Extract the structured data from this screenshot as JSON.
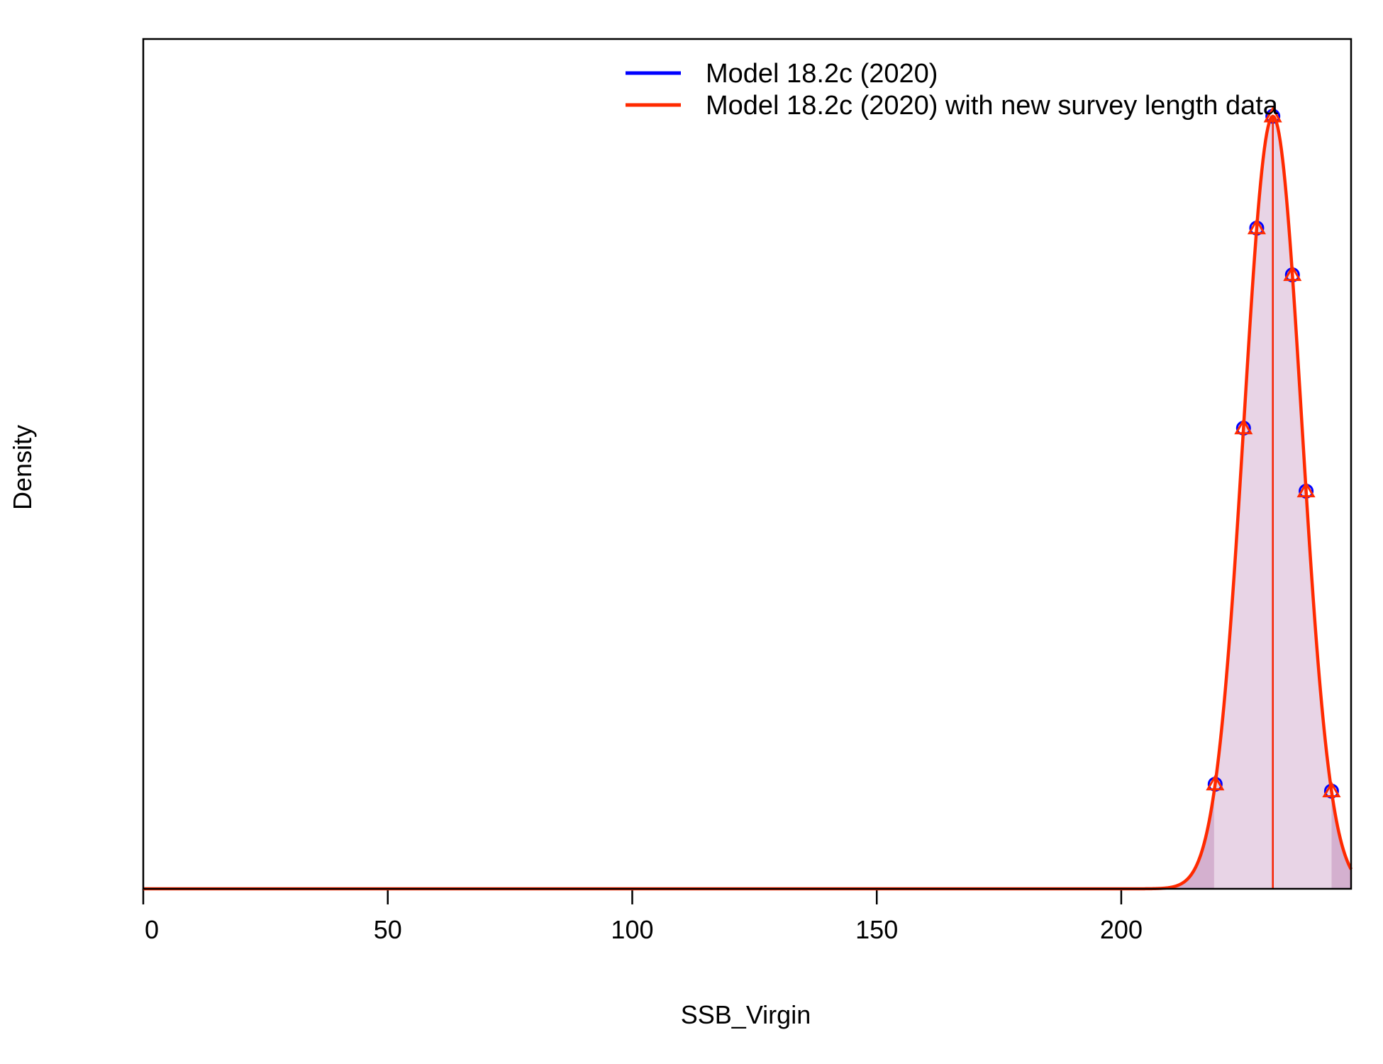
{
  "chart_data": {
    "type": "area",
    "xlabel": "SSB_Virgin",
    "ylabel": "Density",
    "xlim": [
      0,
      247
    ],
    "ylim": [
      0,
      1.1
    ],
    "xticks": [
      0,
      50,
      100,
      150,
      200
    ],
    "xtick_labels": [
      "0",
      "50",
      "100",
      "150",
      "200"
    ],
    "show_y_ticks": false,
    "grid": false,
    "legend_position": "top-right",
    "shading": {
      "fill_color": "#e8d4e6",
      "tail_color": "#d4b0cf",
      "interval": [
        219,
        243
      ]
    },
    "series": [
      {
        "name": "Model 18.2c (2020)",
        "color": "#0000ff",
        "marker": "circle",
        "mean": 231,
        "sd": 5.9,
        "peak_density": 1.0,
        "markers_x": [
          219.2,
          225,
          227.7,
          231,
          235,
          237.8,
          243
        ]
      },
      {
        "name": "Model 18.2c (2020) with new survey length data",
        "color": "#ff2a00",
        "marker": "triangle",
        "mean": 231,
        "sd": 5.9,
        "peak_density": 1.0,
        "markers_x": [
          219.2,
          225,
          227.7,
          231,
          235,
          237.8,
          243
        ]
      }
    ]
  }
}
